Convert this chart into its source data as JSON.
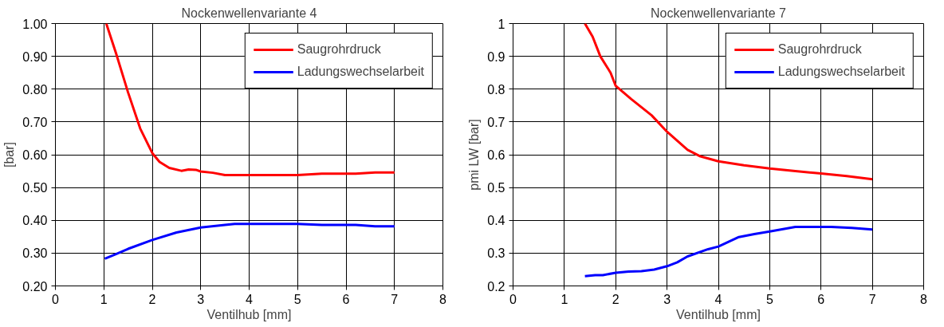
{
  "chart_data": [
    {
      "type": "line",
      "title": "Nockenwellenvariante 4",
      "xlabel": "Ventilhub [mm]",
      "ylabel": "[bar]",
      "xlim": [
        0,
        8
      ],
      "ylim": [
        0.2,
        1.0
      ],
      "xticks": [
        0,
        1,
        2,
        3,
        4,
        5,
        6,
        7,
        8
      ],
      "yticks": [
        {
          "value": 0.2,
          "label": "0.20"
        },
        {
          "value": 0.3,
          "label": "0.30"
        },
        {
          "value": 0.4,
          "label": "0.40"
        },
        {
          "value": 0.5,
          "label": "0.50"
        },
        {
          "value": 0.6,
          "label": "0.60"
        },
        {
          "value": 0.7,
          "label": "0.70"
        },
        {
          "value": 0.8,
          "label": "0.80"
        },
        {
          "value": 0.9,
          "label": "0.90"
        },
        {
          "value": 1.0,
          "label": "1.00"
        }
      ],
      "grid": true,
      "legend": "top right",
      "marker": "none",
      "line_style": "solid",
      "series": [
        {
          "name": "Saugrohrdruck",
          "color": "#ff0000",
          "x": [
            1.05,
            1.25,
            1.5,
            1.75,
            2.0,
            2.15,
            2.35,
            2.6,
            2.75,
            2.9,
            3.0,
            3.25,
            3.5,
            4.0,
            5.0,
            5.5,
            6.2,
            6.6,
            7.0
          ],
          "values": [
            1.0,
            0.91,
            0.79,
            0.68,
            0.605,
            0.578,
            0.56,
            0.551,
            0.555,
            0.554,
            0.549,
            0.545,
            0.538,
            0.538,
            0.538,
            0.542,
            0.542,
            0.546,
            0.546
          ]
        },
        {
          "name": "Ladungswechselarbeit",
          "color": "#0000ff",
          "x": [
            1.02,
            1.25,
            1.5,
            2.0,
            2.5,
            3.0,
            3.5,
            3.7,
            5.0,
            5.5,
            6.2,
            6.6,
            7.0
          ],
          "values": [
            0.283,
            0.297,
            0.313,
            0.34,
            0.363,
            0.378,
            0.386,
            0.389,
            0.389,
            0.386,
            0.386,
            0.382,
            0.382
          ]
        }
      ]
    },
    {
      "type": "line",
      "title": "Nockenwellenvariante 7",
      "xlabel": "Ventilhub [mm]",
      "ylabel": "pmi LW [bar]",
      "xlim": [
        0,
        8
      ],
      "ylim": [
        0.2,
        1
      ],
      "xticks": [
        0,
        1,
        2,
        3,
        4,
        5,
        6,
        7,
        8
      ],
      "yticks": [
        0.2,
        0.3,
        0.4,
        0.5,
        0.6,
        0.7,
        0.8,
        0.9,
        1
      ],
      "grid": true,
      "legend": "top right",
      "marker": "none",
      "line_style": "solid",
      "series": [
        {
          "name": "Saugrohrdruck",
          "color": "#ff0000",
          "x": [
            1.4,
            1.55,
            1.7,
            1.9,
            2.0,
            2.3,
            2.7,
            3.0,
            3.4,
            3.65,
            4.0,
            4.5,
            5.0,
            5.5,
            6.0,
            6.5,
            7.0
          ],
          "values": [
            1.0,
            0.96,
            0.9,
            0.85,
            0.81,
            0.77,
            0.72,
            0.67,
            0.615,
            0.595,
            0.58,
            0.568,
            0.558,
            0.55,
            0.543,
            0.535,
            0.525
          ]
        },
        {
          "name": "Ladungswechselarbeit",
          "color": "#0000ff",
          "x": [
            1.4,
            1.6,
            1.75,
            2.0,
            2.25,
            2.5,
            2.75,
            3.0,
            3.2,
            3.4,
            3.8,
            4.0,
            4.4,
            4.7,
            5.0,
            5.5,
            6.2,
            6.6,
            7.0
          ],
          "values": [
            0.23,
            0.233,
            0.233,
            0.24,
            0.244,
            0.245,
            0.25,
            0.26,
            0.272,
            0.29,
            0.312,
            0.32,
            0.349,
            0.358,
            0.366,
            0.38,
            0.38,
            0.377,
            0.372
          ]
        }
      ]
    }
  ]
}
